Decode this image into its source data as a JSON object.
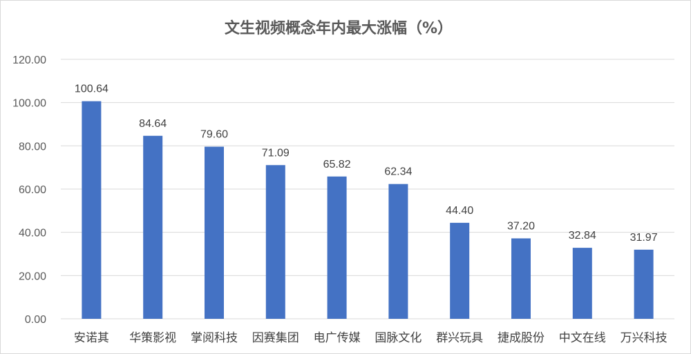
{
  "colors": {
    "bar": "#4472c4",
    "grid": "#d9d9d9",
    "text": "#595959"
  },
  "chart_data": {
    "type": "bar",
    "title": "文生视频概念年内最大涨幅（%）",
    "xlabel": "",
    "ylabel": "",
    "ylim": [
      0,
      120
    ],
    "yticks": [
      "0.00",
      "20.00",
      "40.00",
      "60.00",
      "80.00",
      "100.00",
      "120.00"
    ],
    "grid": true,
    "categories": [
      "安诺其",
      "华策影视",
      "掌阅科技",
      "因赛集团",
      "电广传媒",
      "国脉文化",
      "群兴玩具",
      "捷成股份",
      "中文在线",
      "万兴科技"
    ],
    "values": [
      100.64,
      84.64,
      79.6,
      71.09,
      65.82,
      62.34,
      44.4,
      37.2,
      32.84,
      31.97
    ],
    "value_labels": [
      "100.64",
      "84.64",
      "79.60",
      "71.09",
      "65.82",
      "62.34",
      "44.40",
      "37.20",
      "32.84",
      "31.97"
    ]
  }
}
